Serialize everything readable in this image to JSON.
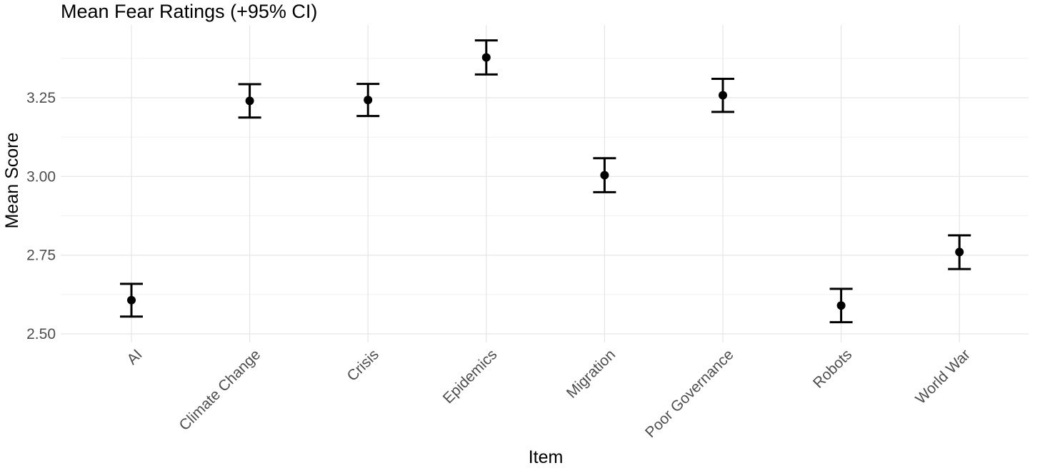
{
  "chart_data": {
    "type": "scatter",
    "title": "Mean Fear Ratings (+95% CI)",
    "xlabel": "Item",
    "ylabel": "Mean Score",
    "categories": [
      "AI",
      "Climate Change",
      "Crisis",
      "Epidemics",
      "Migration",
      "Poor Governance",
      "Robots",
      "World War"
    ],
    "series": [
      {
        "values": [
          2.607,
          3.24,
          3.243,
          3.378,
          3.004,
          3.258,
          2.59,
          2.76
        ],
        "ci_lower": [
          2.555,
          3.187,
          3.192,
          3.324,
          2.95,
          3.205,
          2.537,
          2.706
        ],
        "ci_upper": [
          2.659,
          3.293,
          3.294,
          3.432,
          3.058,
          3.31,
          2.643,
          2.813
        ]
      }
    ],
    "ylim": [
      2.5,
      3.45
    ],
    "yticks": [
      2.5,
      2.75,
      3.0,
      3.25
    ],
    "ytick_labels": [
      "2.50",
      "2.75",
      "3.00",
      "3.25"
    ],
    "grid": true,
    "legend": "none",
    "colors": {
      "marks": "#000000",
      "grid": "#e5e5e5",
      "tick_text": "#4d4d4d"
    }
  }
}
